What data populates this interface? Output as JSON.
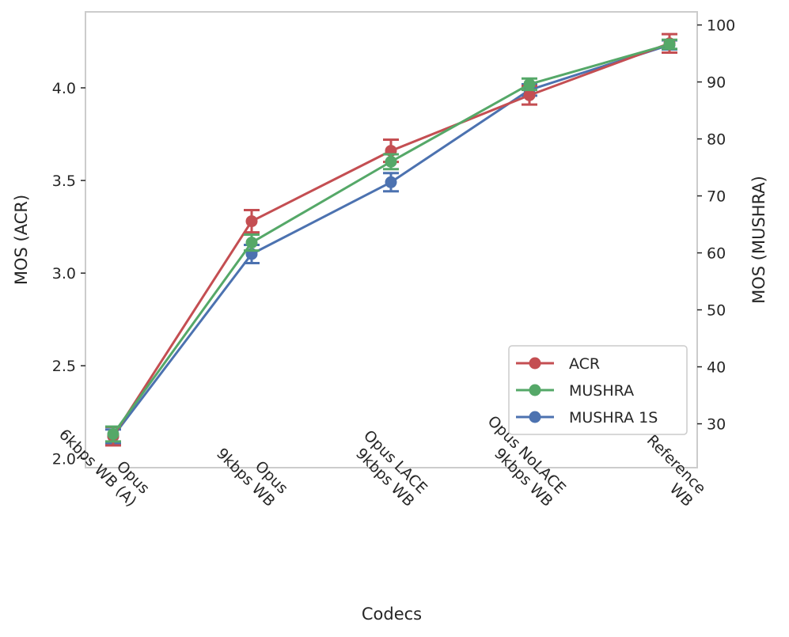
{
  "chart_data": {
    "type": "line",
    "title": "",
    "categories": [
      [
        "Opus",
        "6kbps WB (A)"
      ],
      [
        "Opus",
        "9kbps WB"
      ],
      [
        "Opus LACE",
        "9kbps WB"
      ],
      [
        "Opus NoLACE",
        "9kbps WB"
      ],
      [
        "Reference",
        "WB"
      ]
    ],
    "xlabel": "Codecs",
    "ylabel_left": "MOS (ACR)",
    "ylabel_right": "MOS (MUSHRA)",
    "ylim_left": [
      1.95,
      4.41
    ],
    "ylim_right": [
      22.3,
      102.3
    ],
    "yticks_left": [
      2.0,
      2.5,
      3.0,
      3.5,
      4.0
    ],
    "yticks_left_labels": [
      "2.0",
      "2.5",
      "3.0",
      "3.5",
      "4.0"
    ],
    "yticks_right": [
      30,
      40,
      50,
      60,
      70,
      80,
      90,
      100
    ],
    "yticks_right_labels": [
      "30",
      "40",
      "50",
      "60",
      "70",
      "80",
      "90",
      "100"
    ],
    "legend_position": "lower-right",
    "series": [
      {
        "name": "ACR",
        "axis": "left",
        "color": "#c44e52",
        "values": [
          2.12,
          3.28,
          3.66,
          3.96,
          4.24
        ],
        "errors": [
          0.05,
          0.06,
          0.06,
          0.05,
          0.05
        ]
      },
      {
        "name": "MUSHRA",
        "axis": "right",
        "color": "#55a868",
        "values": [
          28.2,
          61.8,
          76.0,
          89.6,
          96.6
        ],
        "errors": [
          1.3,
          1.4,
          1.3,
          1.0,
          0.8
        ]
      },
      {
        "name": "MUSHRA 1S",
        "axis": "right",
        "color": "#4c72b0",
        "values": [
          27.8,
          59.8,
          72.4,
          88.6,
          96.5
        ],
        "errors": [
          1.2,
          1.6,
          1.6,
          1.0,
          0.8
        ]
      }
    ]
  }
}
